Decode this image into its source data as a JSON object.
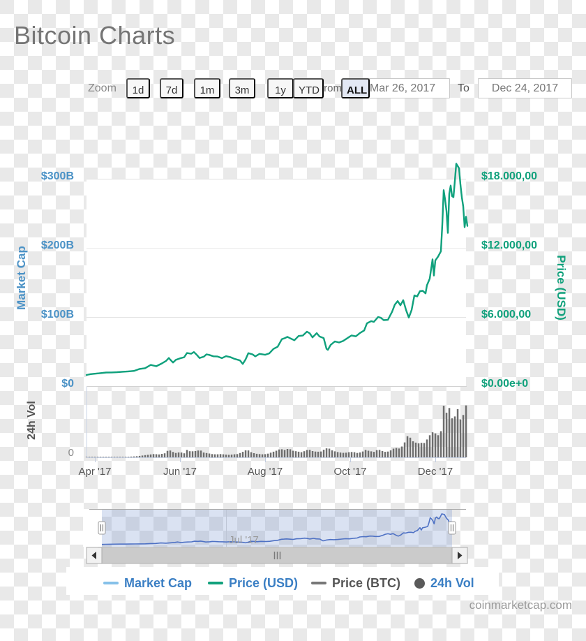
{
  "page": {
    "title": "Bitcoin Charts",
    "watermark": "coinmarketcap.com"
  },
  "toolbar": {
    "zoom_label": "Zoom",
    "buttons": {
      "b1d": "1d",
      "b7d": "7d",
      "b1m": "1m",
      "b3m": "3m",
      "b1y": "1y",
      "bytd": "YTD",
      "ball": "ALL"
    },
    "selected_range": "ALL",
    "from_label": "From",
    "to_label": "To",
    "from_value": "Mar 26, 2017",
    "to_value": "Dec 24, 2017"
  },
  "axes": {
    "market_cap": {
      "title": "Market Cap",
      "labels": [
        "$300B",
        "$200B",
        "$100B",
        "$0"
      ],
      "color": "#4b92c6"
    },
    "price_usd": {
      "title": "Price (USD)",
      "labels": [
        "$18.000,00",
        "$12.000,00",
        "$6.000,00",
        "$0.00e+0"
      ],
      "color": "#11a17c"
    },
    "volume": {
      "title": "24h Vol",
      "zero_label": "0"
    },
    "x": {
      "labels": [
        "Apr '17",
        "Jun '17",
        "Aug '17",
        "Oct '17",
        "Dec '17"
      ]
    }
  },
  "navigator": {
    "month_label": "Jul '17"
  },
  "legend": {
    "items": [
      {
        "label": "Market Cap",
        "swatch_color": "#85c1e9",
        "text_color": "#3b7fc4"
      },
      {
        "label": "Price (USD)",
        "swatch_color": "#11a17c",
        "text_color": "#3b7fc4"
      },
      {
        "label": "Price (BTC)",
        "swatch_color": "#777777",
        "text_color": "#555555"
      },
      {
        "label": "24h Vol",
        "swatch_color": "#5a5a5a",
        "text_color": "#3b7fc4"
      }
    ]
  },
  "chart_data": {
    "type": "line",
    "title": "Bitcoin Charts",
    "x_range": [
      "Mar 26, 2017",
      "Dec 24, 2017"
    ],
    "x_tick_labels": [
      "Apr '17",
      "Jun '17",
      "Aug '17",
      "Oct '17",
      "Dec '17"
    ],
    "price_usd_axis": {
      "min": 0,
      "max": 18000,
      "ticks": [
        0,
        6000,
        12000,
        18000
      ],
      "tick_labels": [
        "$0.00e+0",
        "$6.000,00",
        "$12.000,00",
        "$18.000,00"
      ]
    },
    "market_cap_axis": {
      "min": 0,
      "max": 300,
      "unit": "billion USD",
      "ticks": [
        0,
        100,
        200,
        300
      ],
      "tick_labels": [
        "$0",
        "$100B",
        "$200B",
        "$300B"
      ]
    },
    "volume_axis": {
      "min": 0,
      "max": 18,
      "unit": "billion USD"
    },
    "market_cap_per_usd_price": 0.0167,
    "grid": "horizontal-only",
    "legend_position": "bottom",
    "series": [
      {
        "name": "Price (USD)",
        "type": "line",
        "color": "#10a17c",
        "x_unit": "days since Mar 26, 2017",
        "points": [
          [
            0,
            970
          ],
          [
            3,
            1040
          ],
          [
            6,
            1080
          ],
          [
            10,
            1130
          ],
          [
            14,
            1180
          ],
          [
            18,
            1190
          ],
          [
            22,
            1210
          ],
          [
            26,
            1250
          ],
          [
            30,
            1280
          ],
          [
            34,
            1320
          ],
          [
            38,
            1490
          ],
          [
            42,
            1560
          ],
          [
            46,
            1840
          ],
          [
            50,
            1730
          ],
          [
            54,
            1970
          ],
          [
            57,
            2190
          ],
          [
            59,
            2440
          ],
          [
            60,
            2300
          ],
          [
            62,
            2050
          ],
          [
            64,
            2280
          ],
          [
            67,
            2410
          ],
          [
            70,
            2510
          ],
          [
            72,
            2870
          ],
          [
            75,
            2810
          ],
          [
            77,
            2960
          ],
          [
            79,
            2720
          ],
          [
            81,
            2440
          ],
          [
            84,
            2550
          ],
          [
            86,
            2760
          ],
          [
            88,
            2710
          ],
          [
            91,
            2590
          ],
          [
            94,
            2570
          ],
          [
            97,
            2430
          ],
          [
            100,
            2600
          ],
          [
            103,
            2520
          ],
          [
            106,
            2370
          ],
          [
            110,
            2230
          ],
          [
            112,
            1930
          ],
          [
            114,
            2320
          ],
          [
            116,
            2860
          ],
          [
            119,
            2760
          ],
          [
            121,
            2580
          ],
          [
            124,
            2800
          ],
          [
            128,
            2720
          ],
          [
            131,
            2840
          ],
          [
            134,
            3230
          ],
          [
            137,
            3420
          ],
          [
            140,
            4070
          ],
          [
            142,
            4160
          ],
          [
            144,
            4280
          ],
          [
            146,
            4150
          ],
          [
            149,
            3980
          ],
          [
            152,
            4350
          ],
          [
            155,
            4390
          ],
          [
            158,
            4730
          ],
          [
            160,
            4580
          ],
          [
            162,
            4230
          ],
          [
            165,
            4600
          ],
          [
            167,
            4310
          ],
          [
            170,
            4170
          ],
          [
            172,
            3240
          ],
          [
            173,
            3150
          ],
          [
            175,
            3580
          ],
          [
            178,
            3880
          ],
          [
            181,
            3790
          ],
          [
            184,
            3930
          ],
          [
            187,
            4170
          ],
          [
            190,
            4400
          ],
          [
            193,
            4320
          ],
          [
            196,
            4610
          ],
          [
            199,
            4830
          ],
          [
            201,
            5450
          ],
          [
            204,
            5640
          ],
          [
            206,
            5580
          ],
          [
            209,
            6000
          ],
          [
            211,
            5930
          ],
          [
            213,
            5730
          ],
          [
            216,
            5750
          ],
          [
            219,
            6450
          ],
          [
            221,
            7080
          ],
          [
            223,
            7380
          ],
          [
            225,
            7020
          ],
          [
            227,
            7460
          ],
          [
            229,
            6620
          ],
          [
            231,
            5950
          ],
          [
            233,
            6600
          ],
          [
            235,
            7870
          ],
          [
            237,
            7790
          ],
          [
            239,
            8240
          ],
          [
            241,
            8270
          ],
          [
            243,
            8050
          ],
          [
            244,
            8750
          ],
          [
            246,
            9330
          ],
          [
            248,
            11000
          ],
          [
            249,
            9600
          ],
          [
            250,
            10900
          ],
          [
            252,
            11250
          ],
          [
            254,
            11700
          ],
          [
            255,
            14000
          ],
          [
            256,
            17000
          ],
          [
            257,
            16200
          ],
          [
            258,
            15200
          ],
          [
            259,
            13300
          ],
          [
            260,
            16700
          ],
          [
            261,
            17400
          ],
          [
            262,
            16500
          ],
          [
            263,
            16400
          ],
          [
            264,
            17800
          ],
          [
            265,
            19300
          ],
          [
            266,
            19100
          ],
          [
            267,
            18900
          ],
          [
            268,
            17500
          ],
          [
            269,
            16400
          ],
          [
            270,
            15600
          ],
          [
            271,
            13800
          ],
          [
            272,
            14700
          ],
          [
            273,
            13900
          ]
        ]
      },
      {
        "name": "24h Vol",
        "type": "column",
        "color": "#6e6e6e",
        "x_unit": "days since Mar 26, 2017",
        "value_unit": "billion USD",
        "points": [
          [
            0,
            0.07
          ],
          [
            6,
            0.09
          ],
          [
            12,
            0.1
          ],
          [
            18,
            0.12
          ],
          [
            24,
            0.13
          ],
          [
            30,
            0.15
          ],
          [
            36,
            0.3
          ],
          [
            40,
            0.5
          ],
          [
            44,
            0.7
          ],
          [
            48,
            0.9
          ],
          [
            52,
            0.8
          ],
          [
            56,
            1.1
          ],
          [
            59,
            2.1
          ],
          [
            61,
            1.6
          ],
          [
            64,
            1.2
          ],
          [
            67,
            1.4
          ],
          [
            70,
            1.1
          ],
          [
            72,
            2.0
          ],
          [
            75,
            1.5
          ],
          [
            77,
            1.8
          ],
          [
            79,
            1.6
          ],
          [
            81,
            2.1
          ],
          [
            84,
            1.3
          ],
          [
            87,
            1.1
          ],
          [
            90,
            0.9
          ],
          [
            93,
            0.8
          ],
          [
            96,
            0.9
          ],
          [
            99,
            0.8
          ],
          [
            102,
            0.7
          ],
          [
            105,
            0.8
          ],
          [
            108,
            0.9
          ],
          [
            111,
            1.3
          ],
          [
            113,
            1.7
          ],
          [
            115,
            2.1
          ],
          [
            118,
            1.4
          ],
          [
            121,
            1.0
          ],
          [
            124,
            0.9
          ],
          [
            127,
            0.8
          ],
          [
            130,
            1.0
          ],
          [
            133,
            1.4
          ],
          [
            136,
            1.8
          ],
          [
            139,
            2.3
          ],
          [
            142,
            2.0
          ],
          [
            145,
            2.4
          ],
          [
            148,
            1.8
          ],
          [
            151,
            1.6
          ],
          [
            154,
            1.4
          ],
          [
            157,
            1.8
          ],
          [
            159,
            2.2
          ],
          [
            162,
            1.7
          ],
          [
            165,
            1.5
          ],
          [
            168,
            1.6
          ],
          [
            171,
            2.3
          ],
          [
            173,
            2.6
          ],
          [
            176,
            1.9
          ],
          [
            179,
            1.5
          ],
          [
            182,
            1.3
          ],
          [
            185,
            1.2
          ],
          [
            188,
            1.4
          ],
          [
            191,
            1.5
          ],
          [
            194,
            1.2
          ],
          [
            197,
            1.4
          ],
          [
            200,
            2.0
          ],
          [
            203,
            1.7
          ],
          [
            206,
            1.5
          ],
          [
            209,
            2.2
          ],
          [
            212,
            1.7
          ],
          [
            215,
            1.4
          ],
          [
            218,
            1.9
          ],
          [
            221,
            2.6
          ],
          [
            224,
            2.4
          ],
          [
            227,
            3.2
          ],
          [
            229,
            4.9
          ],
          [
            231,
            6.6
          ],
          [
            233,
            4.1
          ],
          [
            235,
            4.6
          ],
          [
            237,
            3.4
          ],
          [
            239,
            4.2
          ],
          [
            241,
            3.7
          ],
          [
            243,
            4.1
          ],
          [
            245,
            5.6
          ],
          [
            247,
            6.4
          ],
          [
            248,
            6.8
          ],
          [
            249,
            5.4
          ],
          [
            250,
            6.5
          ],
          [
            252,
            6.0
          ],
          [
            254,
            7.1
          ],
          [
            255,
            9.8
          ],
          [
            256,
            14.0
          ],
          [
            257,
            16.2
          ],
          [
            258,
            12.1
          ],
          [
            259,
            10.5
          ],
          [
            260,
            13.4
          ],
          [
            261,
            12.0
          ],
          [
            262,
            10.6
          ],
          [
            263,
            9.4
          ],
          [
            264,
            11.1
          ],
          [
            265,
            12.2
          ],
          [
            266,
            13.1
          ],
          [
            267,
            10.9
          ],
          [
            268,
            10.3
          ],
          [
            269,
            9.8
          ],
          [
            270,
            11.5
          ],
          [
            271,
            17.5
          ],
          [
            272,
            14.1
          ],
          [
            273,
            16.0
          ]
        ]
      },
      {
        "name": "Market Cap",
        "type": "line",
        "color": "#85c1e9",
        "note": "coincides with Price (USD) line; market cap (B) = price x 0.0167; also drawn in navigator",
        "navigator_color": "#4e71c4"
      }
    ]
  }
}
